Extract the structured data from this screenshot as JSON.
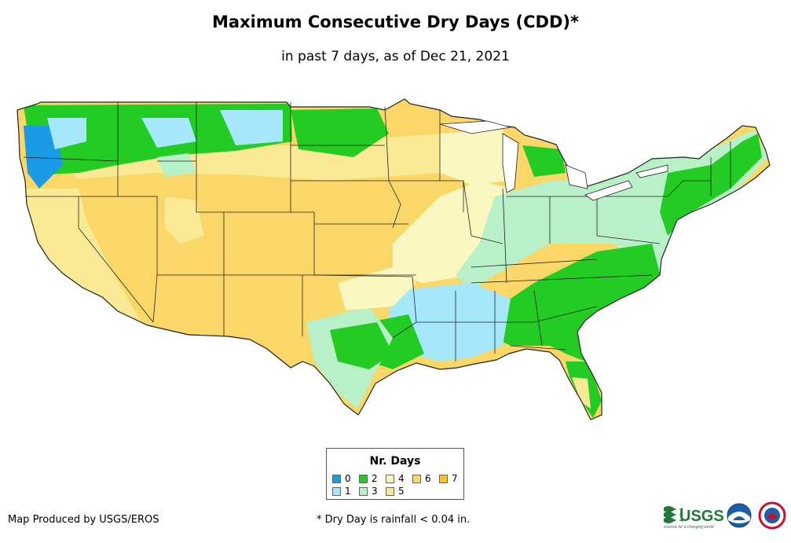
{
  "title": "Maximum Consecutive Dry Days (CDD)*",
  "subtitle": "in past 7 days, as of Dec 21, 2021",
  "legend": {
    "title": "Nr. Days",
    "items": [
      {
        "label": "0",
        "color": "#1a9be6"
      },
      {
        "label": "2",
        "color": "#22cc22"
      },
      {
        "label": "4",
        "color": "#fbf7c0"
      },
      {
        "label": "6",
        "color": "#fad767"
      },
      {
        "label": "7",
        "color": "#f9c326"
      },
      {
        "label": "1",
        "color": "#a6e8fb"
      },
      {
        "label": "3",
        "color": "#b8f0c8"
      },
      {
        "label": "5",
        "color": "#faea95"
      }
    ]
  },
  "credit": "Map Produced by USGS/EROS",
  "footnote": "* Dry Day is rainfall < 0.04 in.",
  "logos": {
    "usgs_text": "USGS",
    "usgs_tagline": "science for a changing world"
  },
  "colors": {
    "d0": "#1a9be6",
    "d1": "#a6e8fb",
    "d2": "#22cc22",
    "d3": "#b8f0c8",
    "d4": "#fbf7c0",
    "d5": "#faea95",
    "d6": "#fad767",
    "d7": "#f9c326"
  }
}
